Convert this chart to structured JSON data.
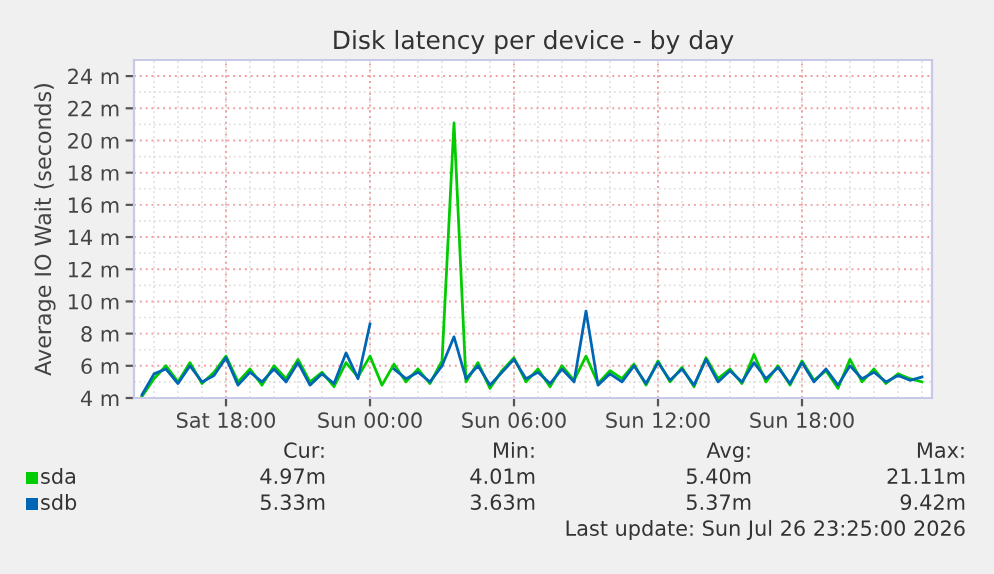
{
  "chart_data": {
    "type": "line",
    "title": "Disk latency per device - by day",
    "ylabel": "Average IO Wait (seconds)",
    "x": [
      "2026-07-25T14:30",
      "2026-07-25T15:00",
      "2026-07-25T15:30",
      "2026-07-25T16:00",
      "2026-07-25T16:30",
      "2026-07-25T17:00",
      "2026-07-25T17:30",
      "2026-07-25T18:00",
      "2026-07-25T18:30",
      "2026-07-25T19:00",
      "2026-07-25T19:30",
      "2026-07-25T20:00",
      "2026-07-25T20:30",
      "2026-07-25T21:00",
      "2026-07-25T21:30",
      "2026-07-25T22:00",
      "2026-07-25T22:30",
      "2026-07-25T23:00",
      "2026-07-25T23:30",
      "2026-07-26T00:00",
      "2026-07-26T00:30",
      "2026-07-26T01:00",
      "2026-07-26T01:30",
      "2026-07-26T02:00",
      "2026-07-26T02:30",
      "2026-07-26T03:00",
      "2026-07-26T03:30",
      "2026-07-26T04:00",
      "2026-07-26T04:30",
      "2026-07-26T05:00",
      "2026-07-26T05:30",
      "2026-07-26T06:00",
      "2026-07-26T06:30",
      "2026-07-26T07:00",
      "2026-07-26T07:30",
      "2026-07-26T08:00",
      "2026-07-26T08:30",
      "2026-07-26T09:00",
      "2026-07-26T09:30",
      "2026-07-26T10:00",
      "2026-07-26T10:30",
      "2026-07-26T11:00",
      "2026-07-26T11:30",
      "2026-07-26T12:00",
      "2026-07-26T12:30",
      "2026-07-26T13:00",
      "2026-07-26T13:30",
      "2026-07-26T14:00",
      "2026-07-26T14:30",
      "2026-07-26T15:00",
      "2026-07-26T15:30",
      "2026-07-26T16:00",
      "2026-07-26T16:30",
      "2026-07-26T17:00",
      "2026-07-26T17:30",
      "2026-07-26T18:00",
      "2026-07-26T18:30",
      "2026-07-26T19:00",
      "2026-07-26T19:30",
      "2026-07-26T20:00",
      "2026-07-26T20:30",
      "2026-07-26T21:00",
      "2026-07-26T21:30",
      "2026-07-26T22:00",
      "2026-07-26T22:30",
      "2026-07-26T23:00"
    ],
    "series": [
      {
        "name": "sda",
        "color": "#00cc00",
        "values": [
          4.1,
          5.2,
          6.0,
          5.0,
          6.2,
          4.9,
          5.6,
          6.6,
          5.0,
          5.8,
          4.8,
          6.0,
          5.2,
          6.4,
          5.0,
          5.6,
          4.7,
          6.2,
          5.3,
          6.6,
          4.8,
          6.1,
          5.0,
          5.8,
          4.9,
          6.3,
          21.1,
          5.0,
          6.2,
          4.6,
          5.7,
          6.5,
          5.0,
          5.8,
          4.7,
          6.0,
          5.1,
          6.6,
          4.9,
          5.7,
          5.2,
          6.1,
          4.8,
          6.3,
          5.0,
          5.9,
          4.7,
          6.5,
          5.2,
          5.8,
          4.9,
          6.7,
          5.0,
          6.0,
          4.8,
          6.3,
          5.1,
          5.7,
          4.6,
          6.4,
          5.0,
          5.8,
          4.9,
          5.5,
          5.2,
          5.0
        ]
      },
      {
        "name": "sdb",
        "color": "#0066b3",
        "values": [
          4.2,
          5.5,
          5.8,
          4.9,
          6.0,
          5.0,
          5.4,
          6.5,
          4.8,
          5.6,
          5.0,
          5.8,
          5.0,
          6.2,
          4.8,
          5.5,
          4.9,
          6.8,
          5.2,
          8.6,
          null,
          5.8,
          5.2,
          5.6,
          5.0,
          6.0,
          7.8,
          5.2,
          6.0,
          4.8,
          5.6,
          6.4,
          5.2,
          5.6,
          4.9,
          5.8,
          5.0,
          9.4,
          4.8,
          5.5,
          5.0,
          6.0,
          4.9,
          6.2,
          5.1,
          5.8,
          4.8,
          6.4,
          5.0,
          5.7,
          5.0,
          6.2,
          5.2,
          5.9,
          4.9,
          6.2,
          5.0,
          5.8,
          4.8,
          6.0,
          5.2,
          5.6,
          5.0,
          5.4,
          5.1,
          5.3
        ]
      }
    ],
    "xlim": [
      "2026-07-25T14:10",
      "2026-07-26T23:25"
    ],
    "xticks": [
      {
        "value": "2026-07-25T18:00",
        "label": "Sat 18:00"
      },
      {
        "value": "2026-07-26T00:00",
        "label": "Sun 00:00"
      },
      {
        "value": "2026-07-26T06:00",
        "label": "Sun 06:00"
      },
      {
        "value": "2026-07-26T12:00",
        "label": "Sun 12:00"
      },
      {
        "value": "2026-07-26T18:00",
        "label": "Sun 18:00"
      }
    ],
    "ylim": [
      4,
      25
    ],
    "yticks": [
      {
        "value": 4,
        "label": "4 m"
      },
      {
        "value": 6,
        "label": "6 m"
      },
      {
        "value": 8,
        "label": "8 m"
      },
      {
        "value": 10,
        "label": "10 m"
      },
      {
        "value": 12,
        "label": "12 m"
      },
      {
        "value": 14,
        "label": "14 m"
      },
      {
        "value": 16,
        "label": "16 m"
      },
      {
        "value": 18,
        "label": "18 m"
      },
      {
        "value": 20,
        "label": "20 m"
      },
      {
        "value": 22,
        "label": "22 m"
      },
      {
        "value": 24,
        "label": "24 m"
      }
    ],
    "grid": true,
    "legend": "bottom left",
    "marker": "none",
    "line_style": "solid",
    "annotations": [
      "Cur:",
      "Min:",
      "Avg:",
      "Max:",
      "4.97m",
      "4.01m",
      "5.40m",
      "21.11m",
      "5.33m",
      "3.63m",
      "5.37m",
      "9.42m",
      "Last update: Sun Jul 26 23:25:00 2026"
    ]
  }
}
